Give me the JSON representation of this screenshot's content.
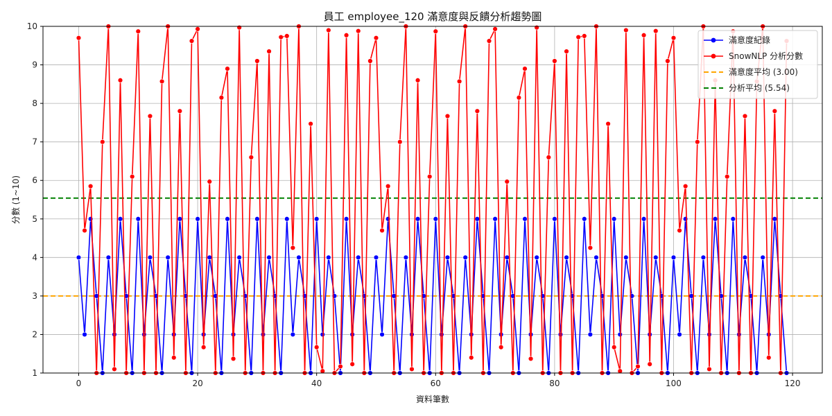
{
  "chart_data": {
    "type": "line",
    "title": "員工 employee_120 滿意度與反饋分析趨勢圖",
    "xlabel": "資料筆數",
    "ylabel": "分數 (1~10)",
    "xlim": [
      -6,
      125
    ],
    "ylim": [
      1,
      10
    ],
    "xticks": [
      0,
      20,
      40,
      60,
      80,
      100,
      120
    ],
    "yticks": [
      1,
      2,
      3,
      4,
      5,
      6,
      7,
      8,
      9,
      10
    ],
    "grid": true,
    "legend_position": "top-right",
    "series": [
      {
        "name": "滿意度紀錄",
        "color": "#0000ff",
        "marker": "circle",
        "x_start": 0,
        "values": [
          4,
          2,
          5,
          3,
          1,
          4,
          2,
          5,
          3,
          1,
          5,
          2,
          4,
          3,
          1,
          4,
          2,
          5,
          3,
          1,
          5,
          2,
          4,
          3,
          1,
          5,
          2,
          4,
          3,
          1,
          5,
          2,
          4,
          3,
          1,
          5,
          2,
          4,
          3,
          1,
          5,
          2,
          4,
          3,
          1,
          5,
          2,
          4,
          3,
          1,
          4,
          2,
          5,
          3,
          1,
          4,
          2,
          5,
          3,
          1,
          5,
          2,
          4,
          3,
          1,
          4,
          2,
          5,
          3,
          1,
          5,
          2,
          4,
          3,
          1,
          5,
          2,
          4,
          3,
          1,
          5,
          2,
          4,
          3,
          1,
          5,
          2,
          4,
          3,
          1,
          5,
          2,
          4,
          3,
          1,
          5,
          2,
          4,
          3,
          1,
          4,
          2,
          5,
          3,
          1,
          4,
          2,
          5,
          3,
          1,
          5,
          2,
          4,
          3,
          1,
          4,
          2,
          5,
          3,
          1
        ]
      },
      {
        "name": "SnowNLP 分析分數",
        "color": "#ff0000",
        "marker": "circle",
        "x_start": 0,
        "values": [
          9.7,
          4.7,
          5.85,
          1,
          7,
          10,
          1.1,
          8.6,
          1,
          6.1,
          9.87,
          1,
          7.67,
          1,
          8.57,
          10,
          1.4,
          7.8,
          1,
          9.62,
          9.93,
          1.67,
          5.97,
          1,
          8.15,
          8.9,
          1.37,
          9.97,
          1,
          6.6,
          9.1,
          1,
          9.35,
          1,
          9.72,
          9.75,
          4.25,
          10,
          1,
          7.47,
          1.67,
          1.05,
          9.9,
          1,
          1.17,
          9.77,
          1.23,
          9.88,
          1,
          9.1,
          9.7,
          4.7,
          5.85,
          1,
          7,
          10,
          1.1,
          8.6,
          1,
          6.1,
          9.87,
          1,
          7.67,
          1,
          8.57,
          10,
          1.4,
          7.8,
          1,
          9.62,
          9.93,
          1.67,
          5.97,
          1,
          8.15,
          8.9,
          1.37,
          9.97,
          1,
          6.6,
          9.1,
          1,
          9.35,
          1,
          9.72,
          9.75,
          4.25,
          10,
          1,
          7.47,
          1.67,
          1.05,
          9.9,
          1,
          1.17,
          9.77,
          1.23,
          9.88,
          1,
          9.1,
          9.7,
          4.7,
          5.85,
          1,
          7,
          10,
          1.1,
          8.6,
          1,
          6.1,
          9.87,
          1,
          7.67,
          1,
          8.57,
          10,
          1.4,
          7.8,
          1,
          9.62
        ]
      }
    ],
    "hlines": [
      {
        "name": "滿意度平均 (3.00)",
        "value": 3.0,
        "color": "#ffa500",
        "style": "dashed"
      },
      {
        "name": "分析平均 (5.54)",
        "value": 5.54,
        "color": "#008000",
        "style": "dashed"
      }
    ]
  }
}
